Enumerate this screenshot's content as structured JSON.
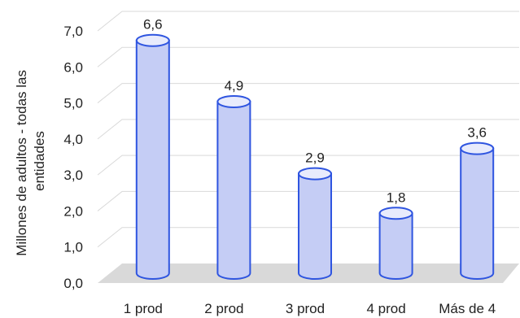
{
  "chart_data": {
    "type": "bar",
    "style": "3d-cylinder",
    "title": "",
    "xlabel": "",
    "ylabel": "Millones de adultos - todas las entidades",
    "ylabel_lines": [
      "Millones de adultos - todas las",
      "entidades"
    ],
    "categories": [
      "1 prod",
      "2 prod",
      "3 prod",
      "4 prod",
      "Más de 4"
    ],
    "values": [
      6.6,
      4.9,
      2.9,
      1.8,
      3.6
    ],
    "value_labels": [
      "6,6",
      "4,9",
      "2,9",
      "1,8",
      "3,6"
    ],
    "ylim": [
      0,
      7
    ],
    "yticks": [
      0,
      1,
      2,
      3,
      4,
      5,
      6,
      7
    ],
    "ytick_labels": [
      "0,0",
      "1,0",
      "2,0",
      "3,0",
      "4,0",
      "5,0",
      "6,0",
      "7,0"
    ],
    "grid": true,
    "legend": "none",
    "colors": {
      "bar_fill": "#c5cdf5",
      "bar_top": "#e8ebfc",
      "bar_stroke": "#2f55e0",
      "grid": "#d9d9d9",
      "floor": "#d9d9d9",
      "wall": "#f2f2f2"
    }
  }
}
